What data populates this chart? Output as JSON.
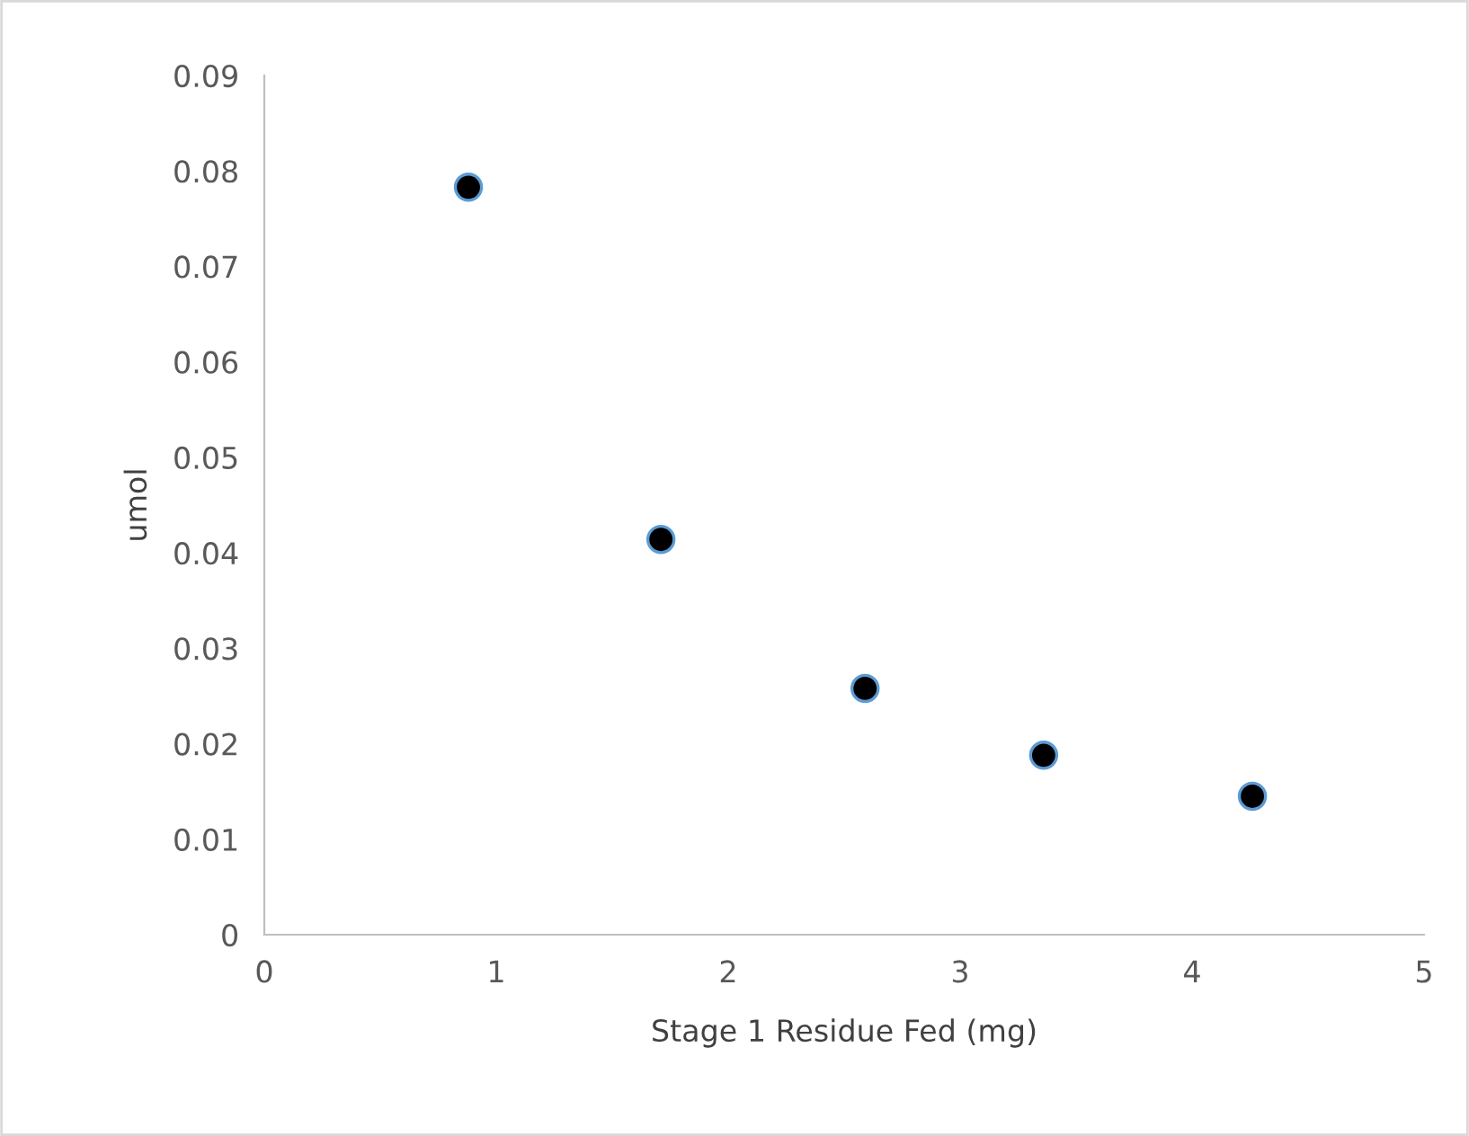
{
  "chart_data": {
    "type": "scatter",
    "xlabel": "Stage 1 Residue Fed (mg)",
    "ylabel": "umol",
    "x": [
      0.88,
      1.71,
      2.59,
      3.36,
      4.26
    ],
    "series": [
      {
        "color": "#000000",
        "values": [
          0.0783,
          0.0414,
          0.0258,
          0.0188,
          0.0145
        ]
      }
    ],
    "xlim": [
      0,
      5
    ],
    "xticks": [
      0,
      1,
      2,
      3,
      4,
      5
    ],
    "ylim": [
      0,
      0.09
    ],
    "yticks": [
      0,
      0.01,
      0.02,
      0.03,
      0.04,
      0.05,
      0.06,
      0.07,
      0.08,
      0.09
    ],
    "marker": "circle",
    "grid": false,
    "legend": false
  }
}
